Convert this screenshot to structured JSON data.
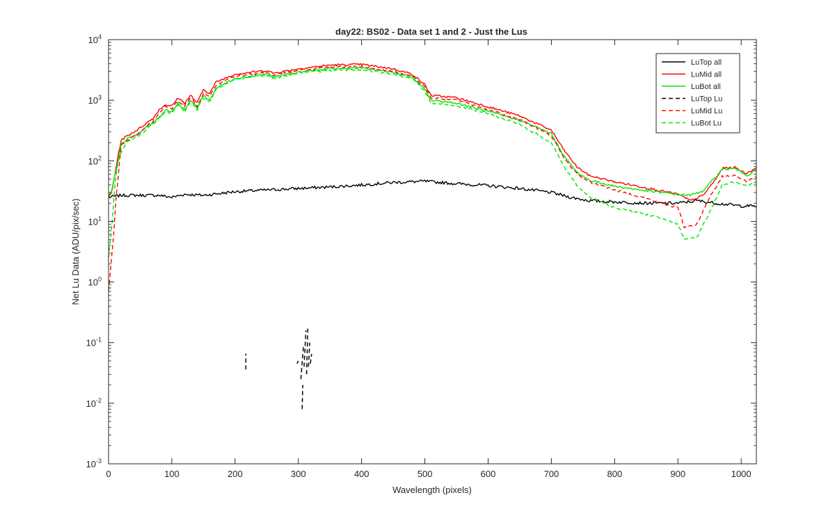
{
  "chart_data": {
    "type": "line",
    "title": "day22: BS02 - Data set 1 and 2 - Just the Lus",
    "xlabel": "Wavelength (pixels)",
    "ylabel": "Net Lu Data (ADU/pix/sec)",
    "xlim": [
      0,
      1024
    ],
    "ylim": [
      0.001,
      10000
    ],
    "yscale": "log",
    "grid": false,
    "legend_position": "top-right",
    "xticks": [
      0,
      100,
      200,
      300,
      400,
      500,
      600,
      700,
      800,
      900,
      1000
    ],
    "xtick_labels": [
      "0",
      "100",
      "200",
      "300",
      "400",
      "500",
      "600",
      "700",
      "800",
      "900",
      "1000"
    ],
    "yticks": [
      {
        "value": 0.001,
        "base": "10",
        "exp": "-3"
      },
      {
        "value": 0.01,
        "base": "10",
        "exp": "-2"
      },
      {
        "value": 0.1,
        "base": "10",
        "exp": "-1"
      },
      {
        "value": 1,
        "base": "10",
        "exp": "0"
      },
      {
        "value": 10,
        "base": "10",
        "exp": "1"
      },
      {
        "value": 100,
        "base": "10",
        "exp": "2"
      },
      {
        "value": 1000,
        "base": "10",
        "exp": "3"
      },
      {
        "value": 10000,
        "base": "10",
        "exp": "4"
      }
    ],
    "series": [
      {
        "name": "LuTop  all",
        "color": "#000000",
        "dash": "solid",
        "x": [
          0,
          20,
          50,
          80,
          100,
          120,
          150,
          200,
          250,
          300,
          350,
          400,
          450,
          500,
          550,
          600,
          650,
          700,
          730,
          760,
          800,
          850,
          900,
          930,
          960,
          1000,
          1024
        ],
        "y": [
          25,
          27,
          27,
          27,
          25,
          28,
          27,
          31,
          33,
          35,
          37,
          40,
          44,
          46,
          42,
          39,
          35,
          30,
          25,
          22,
          21,
          20,
          20,
          22,
          20,
          18,
          18
        ]
      },
      {
        "name": "LuMid  all",
        "color": "#ff0000",
        "dash": "solid",
        "x": [
          0,
          5,
          15,
          20,
          30,
          40,
          50,
          60,
          70,
          80,
          90,
          100,
          110,
          120,
          130,
          140,
          150,
          160,
          170,
          200,
          250,
          260,
          300,
          350,
          400,
          450,
          480,
          500,
          510,
          550,
          600,
          650,
          700,
          720,
          740,
          760,
          800,
          850,
          900,
          920,
          940,
          960,
          970,
          990,
          1000,
          1010,
          1024
        ],
        "y": [
          25,
          30,
          120,
          220,
          260,
          300,
          350,
          420,
          500,
          700,
          850,
          800,
          1100,
          900,
          1200,
          900,
          1500,
          1300,
          2000,
          2700,
          3100,
          2800,
          3300,
          3800,
          3900,
          3300,
          2700,
          1800,
          1200,
          1100,
          780,
          550,
          320,
          150,
          80,
          57,
          45,
          36,
          28,
          22,
          27,
          50,
          75,
          78,
          68,
          62,
          78
        ]
      },
      {
        "name": "LuBot  all",
        "color": "#00e600",
        "dash": "solid",
        "x": [
          0,
          5,
          15,
          20,
          30,
          40,
          50,
          60,
          70,
          80,
          90,
          100,
          110,
          120,
          130,
          140,
          150,
          160,
          170,
          200,
          250,
          260,
          300,
          350,
          400,
          450,
          480,
          500,
          510,
          550,
          600,
          650,
          700,
          720,
          740,
          760,
          800,
          850,
          900,
          920,
          940,
          960,
          970,
          990,
          1000,
          1010,
          1024
        ],
        "y": [
          28,
          32,
          100,
          190,
          230,
          260,
          300,
          360,
          420,
          520,
          700,
          650,
          900,
          700,
          1000,
          750,
          1200,
          1000,
          1600,
          2300,
          2700,
          2400,
          2900,
          3300,
          3400,
          2900,
          2400,
          1500,
          1000,
          900,
          650,
          470,
          280,
          120,
          65,
          48,
          38,
          32,
          28,
          27,
          32,
          55,
          72,
          75,
          65,
          58,
          70
        ]
      },
      {
        "name": "LuTop  Lu",
        "color": "#000000",
        "dash": "dashed",
        "segments": [
          {
            "x": [
              217,
              217
            ],
            "y": [
              0.036,
              0.066
            ]
          },
          {
            "x": [
              298,
              300
            ],
            "y": [
              0.045,
              0.05
            ]
          },
          {
            "x": [
              304,
              308
            ],
            "y": [
              0.025,
              0.085
            ]
          },
          {
            "x": [
              306,
              307
            ],
            "y": [
              0.008,
              0.02
            ]
          },
          {
            "x": [
              309,
              312
            ],
            "y": [
              0.04,
              0.16
            ]
          },
          {
            "x": [
              313,
              315
            ],
            "y": [
              0.03,
              0.17
            ]
          },
          {
            "x": [
              316,
              318
            ],
            "y": [
              0.04,
              0.1
            ]
          },
          {
            "x": [
              319,
              321
            ],
            "y": [
              0.045,
              0.065
            ]
          }
        ]
      },
      {
        "name": "LuMid  Lu",
        "color": "#ff0000",
        "dash": "dashed",
        "x": [
          0,
          3,
          8,
          12,
          20,
          30,
          40,
          50,
          60,
          70,
          80,
          90,
          100,
          110,
          120,
          130,
          140,
          150,
          160,
          170,
          200,
          250,
          260,
          300,
          350,
          400,
          450,
          480,
          500,
          510,
          550,
          600,
          650,
          700,
          720,
          740,
          760,
          800,
          850,
          880,
          900,
          910,
          930,
          950,
          970,
          990,
          1000,
          1010,
          1024
        ],
        "y": [
          0.7,
          1.5,
          6,
          25,
          180,
          220,
          250,
          290,
          380,
          450,
          600,
          780,
          720,
          1000,
          800,
          1100,
          800,
          1300,
          1200,
          1800,
          2500,
          2900,
          2600,
          3100,
          3500,
          3600,
          3000,
          2500,
          1700,
          1100,
          1000,
          700,
          480,
          260,
          110,
          62,
          45,
          33,
          24,
          19,
          17,
          8,
          9,
          25,
          55,
          58,
          50,
          45,
          55
        ]
      },
      {
        "name": "LuBot  Lu",
        "color": "#00e600",
        "dash": "dashed",
        "x": [
          0,
          5,
          10,
          15,
          25,
          30,
          40,
          50,
          60,
          70,
          80,
          90,
          100,
          110,
          120,
          130,
          140,
          150,
          160,
          170,
          200,
          250,
          260,
          300,
          350,
          400,
          450,
          480,
          500,
          510,
          550,
          600,
          650,
          700,
          720,
          740,
          760,
          800,
          850,
          880,
          900,
          910,
          930,
          950,
          970,
          990,
          1000,
          1010,
          1024
        ],
        "y": [
          2.5,
          8,
          40,
          100,
          180,
          210,
          240,
          270,
          330,
          400,
          500,
          650,
          600,
          850,
          650,
          950,
          700,
          1100,
          950,
          1500,
          2200,
          2600,
          2300,
          2800,
          3100,
          3200,
          2700,
          2300,
          1400,
          900,
          820,
          600,
          400,
          200,
          80,
          40,
          25,
          17,
          13,
          11,
          9,
          5,
          5.5,
          14,
          40,
          45,
          40,
          38,
          45
        ]
      }
    ]
  }
}
